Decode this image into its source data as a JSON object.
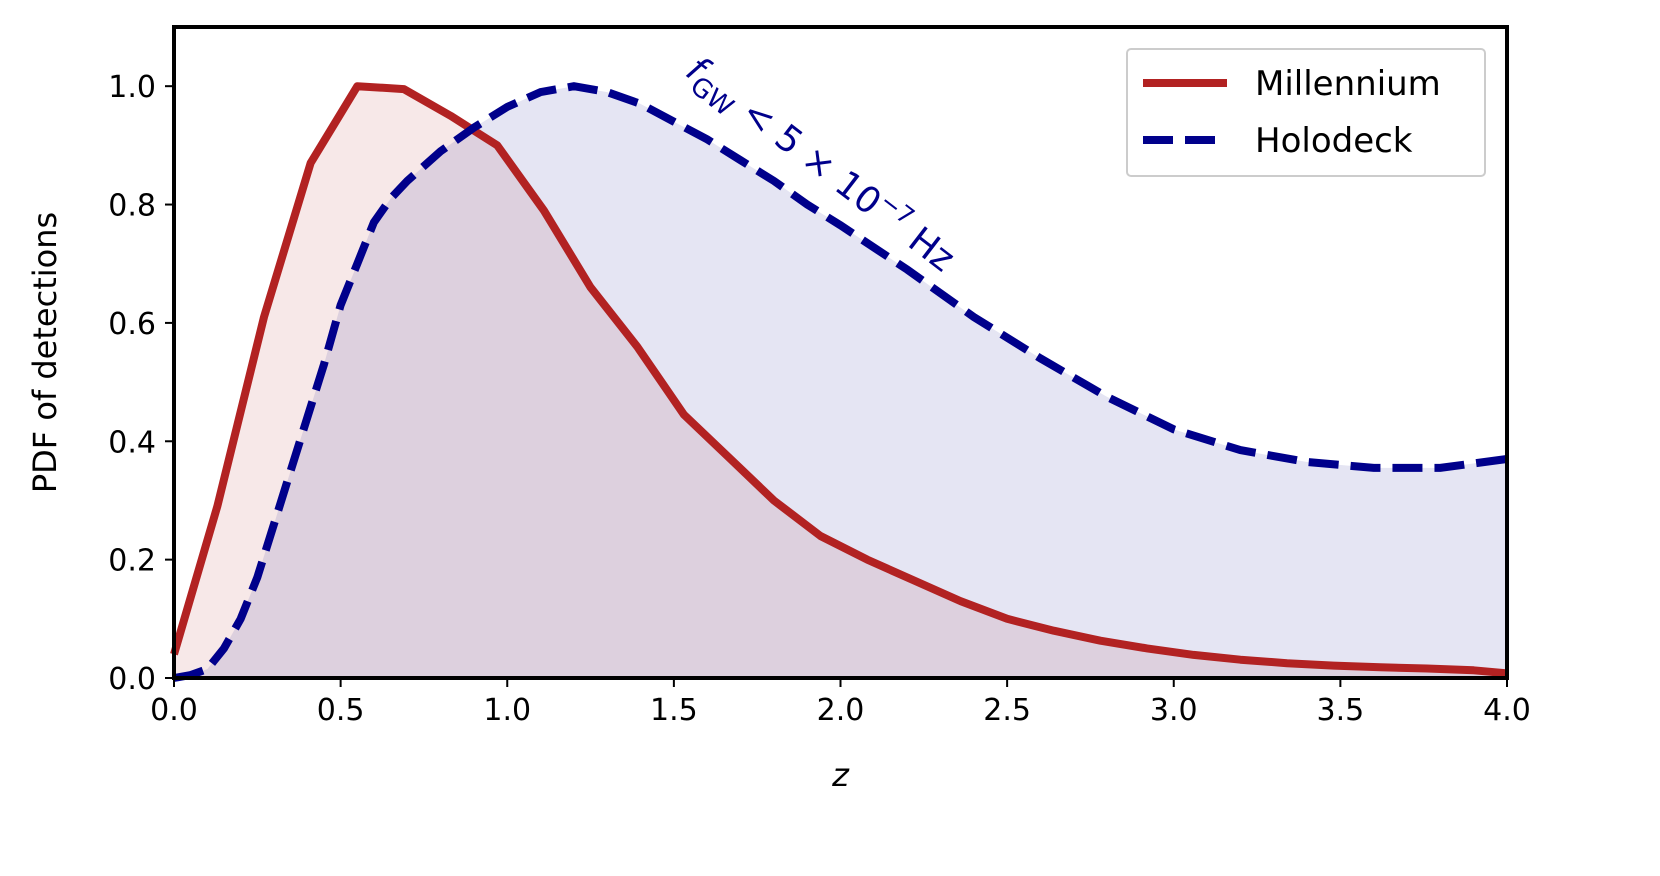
{
  "chart_data": {
    "type": "line",
    "xlabel": "z",
    "ylabel": "PDF of detections",
    "xlim": [
      0.0,
      4.0
    ],
    "ylim": [
      0.0,
      1.1
    ],
    "xticks": [
      0.0,
      0.5,
      1.0,
      1.5,
      2.0,
      2.5,
      3.0,
      3.5,
      4.0
    ],
    "xtick_labels": [
      "0.0",
      "0.5",
      "1.0",
      "1.5",
      "2.0",
      "2.5",
      "3.0",
      "3.5",
      "4.0"
    ],
    "yticks": [
      0.0,
      0.2,
      0.4,
      0.6,
      0.8,
      1.0
    ],
    "ytick_labels": [
      "0.0",
      "0.2",
      "0.4",
      "0.6",
      "0.8",
      "1.0"
    ],
    "legend_position": "top-right",
    "annotation": {
      "main": "f",
      "sub": "GW",
      "rest": " < 5 × 10",
      "sup": "−7",
      "unit": " Hz",
      "anchor_x": 1.53,
      "anchor_y": 1.02,
      "color": "#00008b"
    },
    "series": [
      {
        "name": "Millennium",
        "color": "#b22222",
        "fill": "#b22222",
        "style": "solid",
        "x": [
          0.0,
          0.13,
          0.27,
          0.41,
          0.55,
          0.69,
          0.83,
          0.97,
          1.11,
          1.25,
          1.39,
          1.53,
          1.67,
          1.8,
          1.94,
          2.08,
          2.22,
          2.36,
          2.5,
          2.64,
          2.78,
          2.92,
          3.06,
          3.2,
          3.34,
          3.48,
          3.62,
          3.76,
          3.9,
          4.0
        ],
        "y": [
          0.04,
          0.29,
          0.61,
          0.87,
          1.0,
          0.995,
          0.95,
          0.9,
          0.79,
          0.66,
          0.56,
          0.445,
          0.37,
          0.3,
          0.24,
          0.2,
          0.165,
          0.13,
          0.1,
          0.08,
          0.063,
          0.05,
          0.039,
          0.031,
          0.025,
          0.021,
          0.018,
          0.016,
          0.013,
          0.008
        ]
      },
      {
        "name": "Holodeck",
        "color": "#00008b",
        "fill": "#00008b",
        "style": "dashed",
        "x": [
          0.0,
          0.05,
          0.1,
          0.15,
          0.2,
          0.25,
          0.3,
          0.35,
          0.4,
          0.45,
          0.5,
          0.55,
          0.6,
          0.65,
          0.7,
          0.8,
          0.9,
          1.0,
          1.1,
          1.2,
          1.3,
          1.4,
          1.5,
          1.6,
          1.7,
          1.8,
          1.9,
          2.0,
          2.2,
          2.4,
          2.6,
          2.8,
          3.0,
          3.2,
          3.4,
          3.6,
          3.8,
          4.0
        ],
        "y": [
          0.0,
          0.005,
          0.015,
          0.05,
          0.1,
          0.17,
          0.26,
          0.35,
          0.44,
          0.53,
          0.63,
          0.7,
          0.77,
          0.81,
          0.84,
          0.89,
          0.93,
          0.965,
          0.99,
          1.0,
          0.99,
          0.97,
          0.94,
          0.91,
          0.875,
          0.84,
          0.8,
          0.765,
          0.69,
          0.61,
          0.54,
          0.475,
          0.42,
          0.385,
          0.365,
          0.355,
          0.355,
          0.37
        ]
      }
    ]
  }
}
